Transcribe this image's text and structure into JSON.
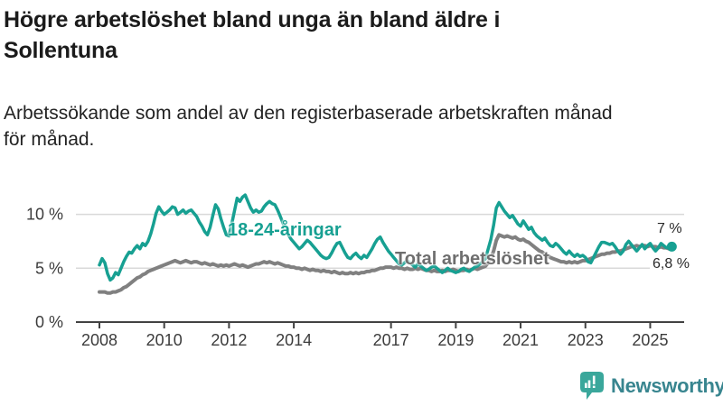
{
  "header": {
    "title_lines": [
      "Högre arbetslöshet bland unga än bland äldre i",
      "Sollentuna"
    ],
    "subtitle_lines": [
      "Arbetssökande som andel av den registerbaserade arbetskraften månad",
      "för månad."
    ]
  },
  "chart_data": {
    "type": "line",
    "title": "Högre arbetslöshet bland unga än bland äldre i Sollentuna",
    "subtitle": "Arbetssökande som andel av den registerbaserade arbetskraften månad för månad.",
    "x_start_year": 2008,
    "x_end": "2025-09",
    "points_per_year": 12,
    "x_tick_years": [
      2008,
      2010,
      2012,
      2014,
      2017,
      2019,
      2021,
      2023,
      2025
    ],
    "y_ticks": [
      {
        "value": 0,
        "label": "0 %"
      },
      {
        "value": 5,
        "label": "5 %"
      },
      {
        "value": 10,
        "label": "10 %"
      }
    ],
    "ylim": [
      0,
      12.5
    ],
    "grid": "horizontal",
    "legend_position": "inline-labels",
    "series": [
      {
        "id": "total",
        "name": "Total arbetslöshet",
        "color": "#808080",
        "width": 4,
        "end_dot": false,
        "values": [
          2.8,
          2.8,
          2.8,
          2.7,
          2.7,
          2.8,
          2.8,
          2.9,
          3.0,
          3.2,
          3.3,
          3.5,
          3.7,
          3.9,
          4.1,
          4.2,
          4.4,
          4.5,
          4.7,
          4.8,
          4.9,
          5.0,
          5.1,
          5.2,
          5.3,
          5.4,
          5.5,
          5.6,
          5.7,
          5.6,
          5.5,
          5.6,
          5.7,
          5.6,
          5.5,
          5.6,
          5.6,
          5.5,
          5.4,
          5.5,
          5.4,
          5.3,
          5.4,
          5.3,
          5.2,
          5.3,
          5.2,
          5.3,
          5.2,
          5.3,
          5.4,
          5.3,
          5.2,
          5.3,
          5.2,
          5.1,
          5.2,
          5.3,
          5.4,
          5.4,
          5.5,
          5.6,
          5.5,
          5.6,
          5.5,
          5.4,
          5.5,
          5.4,
          5.3,
          5.2,
          5.2,
          5.1,
          5.1,
          5.0,
          5.0,
          4.9,
          5.0,
          4.9,
          4.8,
          4.9,
          4.8,
          4.8,
          4.7,
          4.8,
          4.7,
          4.7,
          4.6,
          4.7,
          4.6,
          4.5,
          4.6,
          4.5,
          4.5,
          4.6,
          4.5,
          4.6,
          4.5,
          4.6,
          4.6,
          4.7,
          4.7,
          4.8,
          4.8,
          4.9,
          5.0,
          5.0,
          5.1,
          5.1,
          5.1,
          5.0,
          5.1,
          5.0,
          5.0,
          4.9,
          5.0,
          4.9,
          4.9,
          5.0,
          4.9,
          5.0,
          4.9,
          4.8,
          4.8,
          4.7,
          4.8,
          4.7,
          4.7,
          4.8,
          4.7,
          4.8,
          4.8,
          4.9,
          4.8,
          4.7,
          4.8,
          4.8,
          4.9,
          4.8,
          4.9,
          5.0,
          4.9,
          5.0,
          5.1,
          5.2,
          5.5,
          5.9,
          6.6,
          7.6,
          8.1,
          8.0,
          7.9,
          8.0,
          7.9,
          7.8,
          7.9,
          7.7,
          7.6,
          7.7,
          7.5,
          7.4,
          7.2,
          7.0,
          6.8,
          6.6,
          6.5,
          6.3,
          6.2,
          6.0,
          5.9,
          5.8,
          5.7,
          5.6,
          5.6,
          5.5,
          5.6,
          5.5,
          5.6,
          5.5,
          5.6,
          5.7,
          5.7,
          5.8,
          5.9,
          6.0,
          6.1,
          6.2,
          6.3,
          6.3,
          6.4,
          6.4,
          6.5,
          6.5,
          6.6,
          6.6,
          6.7,
          6.8,
          6.9,
          7.0,
          7.0,
          7.1,
          7.0,
          7.1,
          7.1,
          7.0,
          7.1,
          7.0,
          7.0,
          6.9,
          7.0,
          6.9,
          6.9,
          6.8,
          6.8
        ]
      },
      {
        "id": "young",
        "name": "18-24-åringar",
        "color": "#17a092",
        "width": 3.5,
        "end_dot": true,
        "values": [
          5.3,
          5.9,
          5.5,
          4.5,
          3.9,
          4.1,
          4.6,
          4.4,
          5.0,
          5.6,
          6.1,
          6.5,
          6.4,
          6.8,
          7.1,
          6.8,
          7.3,
          7.1,
          7.5,
          8.2,
          9.1,
          10.1,
          10.7,
          10.3,
          10.0,
          10.2,
          10.4,
          10.7,
          10.6,
          10.0,
          10.2,
          10.4,
          10.1,
          10.3,
          10.4,
          10.1,
          9.8,
          9.3,
          8.9,
          8.4,
          8.1,
          8.8,
          9.9,
          10.9,
          10.5,
          9.6,
          8.8,
          8.1,
          8.0,
          9.1,
          10.3,
          11.5,
          11.2,
          11.6,
          11.8,
          11.2,
          10.6,
          10.2,
          10.4,
          10.2,
          10.3,
          10.7,
          11.0,
          11.2,
          11.0,
          10.9,
          10.4,
          9.8,
          9.2,
          8.6,
          8.1,
          7.7,
          7.4,
          7.1,
          6.8,
          7.0,
          7.3,
          7.6,
          7.4,
          7.1,
          6.8,
          6.5,
          6.2,
          6.0,
          5.9,
          6.0,
          6.4,
          6.9,
          7.3,
          7.4,
          6.9,
          6.4,
          6.0,
          5.9,
          6.2,
          6.4,
          6.1,
          5.9,
          6.2,
          6.0,
          6.4,
          6.8,
          7.3,
          7.7,
          7.9,
          7.4,
          7.0,
          6.6,
          6.3,
          6.0,
          5.7,
          5.4,
          5.3,
          5.5,
          5.7,
          5.5,
          5.3,
          5.1,
          5.4,
          5.2,
          5.0,
          4.8,
          4.9,
          5.1,
          5.2,
          5.0,
          4.8,
          4.6,
          4.8,
          5.0,
          4.8,
          4.7,
          4.6,
          4.7,
          4.9,
          5.0,
          4.8,
          4.7,
          4.9,
          5.1,
          5.2,
          5.4,
          5.6,
          5.9,
          6.8,
          7.7,
          9.0,
          10.6,
          11.1,
          10.7,
          10.3,
          10.0,
          9.7,
          9.9,
          9.5,
          9.1,
          8.9,
          9.4,
          9.0,
          8.6,
          8.8,
          8.3,
          8.0,
          7.8,
          7.6,
          7.8,
          7.4,
          7.1,
          7.0,
          7.3,
          7.1,
          6.8,
          6.5,
          6.3,
          6.6,
          6.3,
          6.1,
          6.3,
          6.1,
          6.2,
          6.0,
          5.6,
          5.5,
          6.0,
          6.5,
          7.0,
          7.4,
          7.4,
          7.3,
          7.2,
          7.3,
          7.0,
          6.6,
          6.3,
          6.6,
          7.2,
          7.5,
          7.2,
          6.9,
          6.6,
          6.9,
          7.2,
          6.8,
          7.1,
          7.3,
          6.9,
          6.6,
          6.9,
          7.3,
          7.1,
          6.9,
          7.0,
          7.0
        ]
      }
    ],
    "labels": {
      "young": "18-24-åringar",
      "total": "Total arbetslöshet"
    },
    "end_labels": {
      "young": "7 %",
      "total": "6,8 %"
    }
  },
  "footer": {
    "brand": "Newsworthy"
  },
  "colors": {
    "accent_teal": "#17a092",
    "series_gray": "#808080",
    "axis_text": "#3c3c3c",
    "gridline": "#d9d9d9",
    "brand_icon": "#3aa79b",
    "brand_text": "#38858f"
  }
}
